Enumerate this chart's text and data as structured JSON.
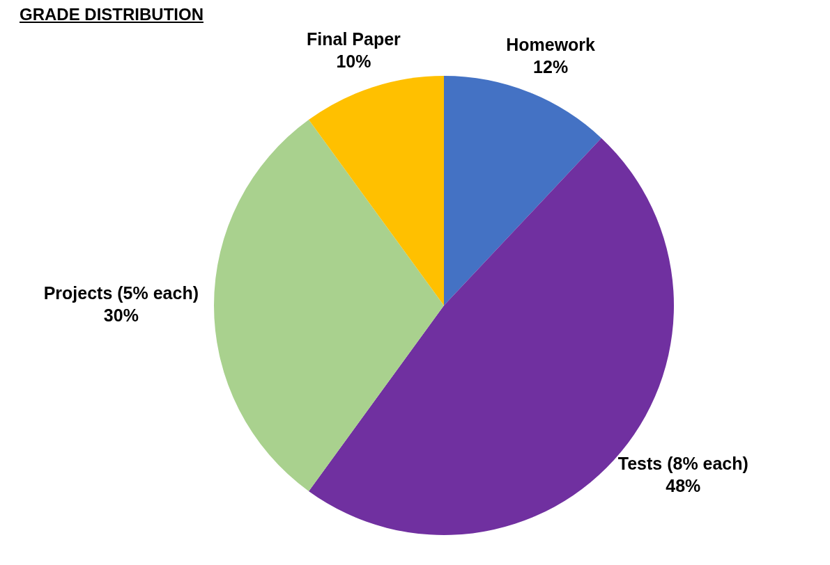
{
  "chart_data": {
    "type": "pie",
    "title": "GRADE DISTRIBUTION",
    "categories": [
      "Homework",
      "Tests (8% each)",
      "Projects (5% each)",
      "Final Paper"
    ],
    "values": [
      12,
      48,
      30,
      10
    ],
    "colors": [
      "#4472c4",
      "#7030a0",
      "#a9d18e",
      "#ffc000"
    ],
    "value_labels": [
      "12%",
      "48%",
      "30%",
      "10%"
    ],
    "legend": false
  }
}
